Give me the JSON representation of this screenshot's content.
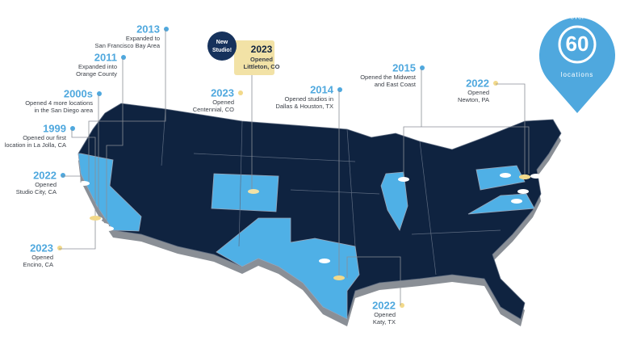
{
  "badge": {
    "top": "over",
    "number": 60,
    "bottom": "locations"
  },
  "highlight": {
    "tag": [
      "New",
      "Studio!"
    ],
    "year": "2023",
    "lines": [
      "Opened",
      "Littleton, CO"
    ]
  },
  "milestones": [
    {
      "year": "2013",
      "lines": [
        "Expanded to",
        "San Francisco Bay Area"
      ]
    },
    {
      "year": "2011",
      "lines": [
        "Expanded into",
        "Orange County"
      ]
    },
    {
      "year": "2000s",
      "lines": [
        "Opened 4 more locations",
        "in the San Diego area"
      ]
    },
    {
      "year": "1999",
      "lines": [
        "Opened our first",
        "location in La Jolla, CA"
      ]
    },
    {
      "year": "2022",
      "lines": [
        "Opened",
        "Studio City, CA"
      ]
    },
    {
      "year": "2023",
      "lines": [
        "Opened",
        "Encino, CA"
      ]
    },
    {
      "year": "2023",
      "lines": [
        "Opened",
        "Centennial, CO"
      ]
    },
    {
      "year": "2014",
      "lines": [
        "Opened studios in",
        "Dallas & Houston, TX"
      ]
    },
    {
      "year": "2015",
      "lines": [
        "Opened the Midwest",
        "and East Coast"
      ]
    },
    {
      "year": "2022",
      "lines": [
        "Opened",
        "Newton, PA"
      ]
    },
    {
      "year": "2022",
      "lines": [
        "Opened",
        "Katy, TX"
      ]
    }
  ]
}
